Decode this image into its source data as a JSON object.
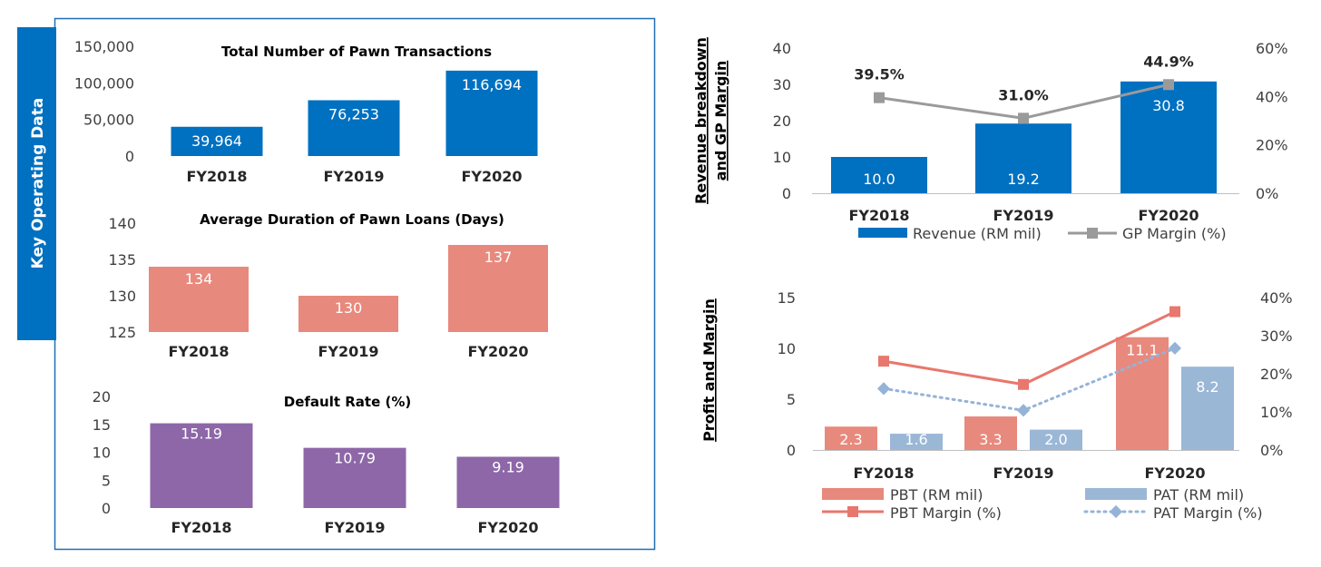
{
  "left_panel_label": "Key Operating Data",
  "colors": {
    "blue": "#0070c0",
    "salmon": "#e8897d",
    "purple": "#8d67a8",
    "gray": "#9a9a9a",
    "lightblue": "#9bb7d6",
    "pbt_line": "#e8776d",
    "pat_line": "#95b3d7",
    "frame": "#1f6fb5"
  },
  "chart_data": [
    {
      "type": "bar",
      "title": "Total Number of Pawn Transactions",
      "categories": [
        "FY2018",
        "FY2019",
        "FY2020"
      ],
      "values": [
        39964,
        76253,
        116694
      ],
      "value_labels": [
        "39,964",
        "76,253",
        "116,694"
      ],
      "ylim": [
        0,
        150000
      ],
      "yticks": [
        "0",
        "50,000",
        "100,000",
        "150,000"
      ],
      "grid": false
    },
    {
      "type": "bar",
      "title": "Average Duration of Pawn Loans (Days)",
      "categories": [
        "FY2018",
        "FY2019",
        "FY2020"
      ],
      "values": [
        134,
        130,
        137
      ],
      "value_labels": [
        "134",
        "130",
        "137"
      ],
      "ylim": [
        125,
        140
      ],
      "yticks": [
        "125",
        "130",
        "135",
        "140"
      ],
      "grid": false
    },
    {
      "type": "bar",
      "title": "Default Rate (%)",
      "categories": [
        "FY2018",
        "FY2019",
        "FY2020"
      ],
      "values": [
        15.19,
        10.79,
        9.19
      ],
      "value_labels": [
        "15.19",
        "10.79",
        "9.19"
      ],
      "ylim": [
        0,
        20
      ],
      "yticks": [
        "0",
        "5",
        "10",
        "15",
        "20"
      ],
      "grid": false
    },
    {
      "type": "bar",
      "side_label": [
        "Revenue breakdown",
        "and GP Margin"
      ],
      "categories": [
        "FY2018",
        "FY2019",
        "FY2020"
      ],
      "series": [
        {
          "name": "Revenue (RM mil)",
          "kind": "bar",
          "axis": "left",
          "values": [
            10.0,
            19.2,
            30.8
          ],
          "labels": [
            "10.0",
            "19.2",
            "30.8"
          ]
        },
        {
          "name": "GP Margin (%)",
          "kind": "line",
          "axis": "right",
          "values": [
            39.5,
            31.0,
            44.9
          ],
          "labels": [
            "39.5%",
            "31.0%",
            "44.9%"
          ]
        }
      ],
      "ylim": [
        0,
        40
      ],
      "yticks": [
        "0",
        "10",
        "20",
        "30",
        "40"
      ],
      "y2lim": [
        0,
        60
      ],
      "y2ticks": [
        "0%",
        "20%",
        "40%",
        "60%"
      ],
      "legend": "bottom",
      "grid": false
    },
    {
      "type": "bar",
      "side_label": [
        "Profit and Margin"
      ],
      "categories": [
        "FY2018",
        "FY2019",
        "FY2020"
      ],
      "series": [
        {
          "name": "PBT (RM mil)",
          "kind": "bar",
          "axis": "left",
          "values": [
            2.3,
            3.3,
            11.1
          ],
          "labels": [
            "2.3",
            "3.3",
            "11.1"
          ]
        },
        {
          "name": "PAT (RM mil)",
          "kind": "bar",
          "axis": "left",
          "values": [
            1.6,
            2.0,
            8.2
          ],
          "labels": [
            "1.6",
            "2.0",
            "8.2"
          ]
        },
        {
          "name": "PBT Margin (%)",
          "kind": "line",
          "axis": "right",
          "values": [
            23.3,
            17.2,
            36.3
          ]
        },
        {
          "name": "PAT Margin (%)",
          "kind": "line",
          "axis": "right",
          "values": [
            16.1,
            10.4,
            26.7
          ]
        }
      ],
      "ylim": [
        0,
        15
      ],
      "yticks": [
        "0",
        "5",
        "10",
        "15"
      ],
      "y2lim": [
        0,
        40
      ],
      "y2ticks": [
        "0%",
        "10%",
        "20%",
        "30%",
        "40%"
      ],
      "legend": "bottom",
      "grid": false
    }
  ]
}
